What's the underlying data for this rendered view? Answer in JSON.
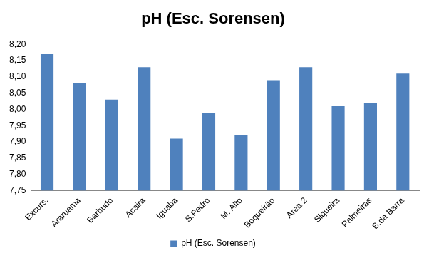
{
  "chart_data": {
    "type": "bar",
    "title": "pH (Esc. Sorensen)",
    "categories": [
      "Excurs.",
      "Araruama",
      "Barbudo",
      "Acaira",
      "Iguaba",
      "S.Pedro",
      "M. Alto",
      "Boqueirão",
      "Area 2",
      "Siqueira",
      "Palmeiras",
      "B.da Barra"
    ],
    "series": [
      {
        "name": "pH (Esc. Sorensen)",
        "color": "#4f81bd",
        "values": [
          8.17,
          8.08,
          8.03,
          8.13,
          7.91,
          7.99,
          7.92,
          8.09,
          8.13,
          8.01,
          8.02,
          8.11
        ]
      }
    ],
    "ylim": [
      7.75,
      8.2
    ],
    "yticks": [
      {
        "value": 7.75,
        "label": "7,75"
      },
      {
        "value": 7.8,
        "label": "7,80"
      },
      {
        "value": 7.85,
        "label": "7,85"
      },
      {
        "value": 7.9,
        "label": "7,90"
      },
      {
        "value": 7.95,
        "label": "7,95"
      },
      {
        "value": 8.0,
        "label": "8,00"
      },
      {
        "value": 8.05,
        "label": "8,05"
      },
      {
        "value": 8.1,
        "label": "8,10"
      },
      {
        "value": 8.15,
        "label": "8,15"
      },
      {
        "value": 8.2,
        "label": "8,20"
      }
    ],
    "grid": false,
    "legend": "bottom"
  }
}
